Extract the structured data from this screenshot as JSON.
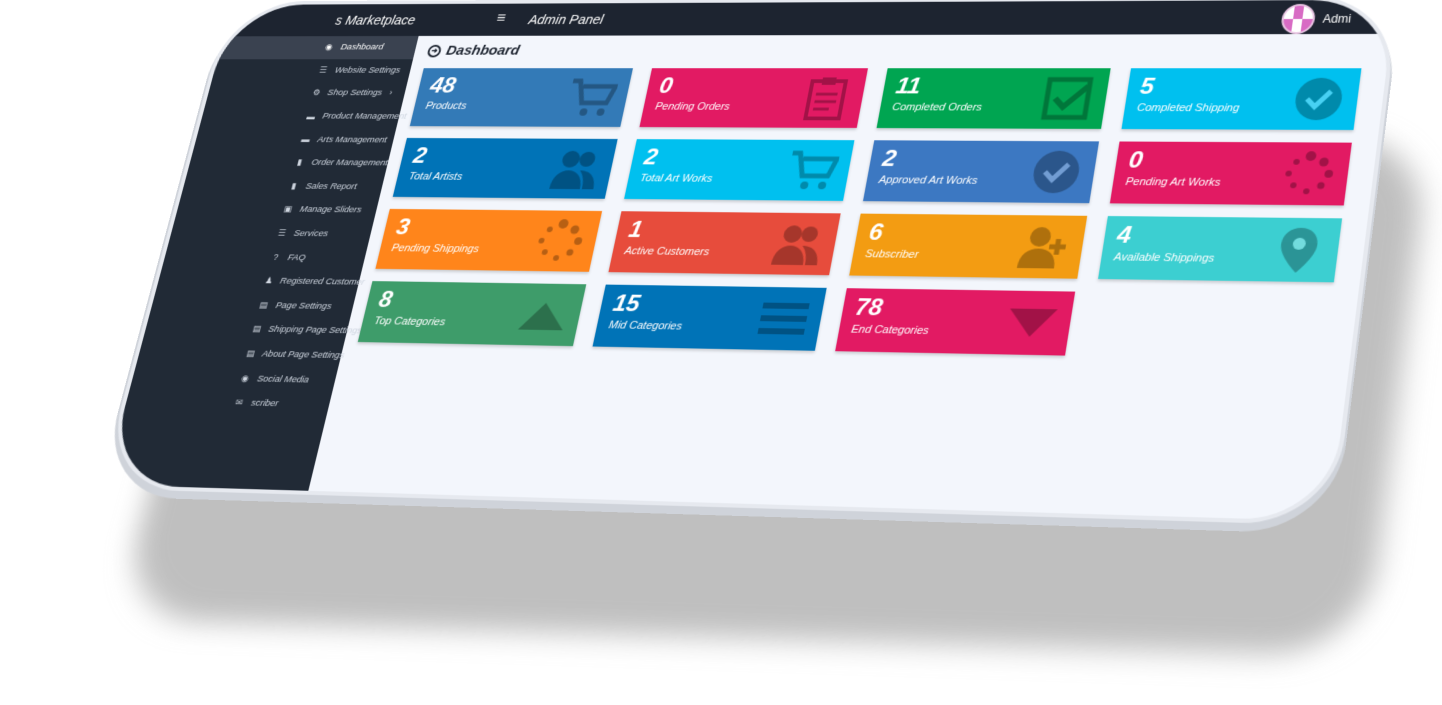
{
  "topbar": {
    "brand": "s Marketplace",
    "menu_icon": "hamburger-icon",
    "panel_title": "Admin Panel",
    "user_label": "Admi"
  },
  "sidebar": {
    "items": [
      {
        "label": "Dashboard",
        "icon": "dashboard-icon",
        "active": true
      },
      {
        "label": "Website Settings",
        "icon": "sliders-icon"
      },
      {
        "label": "Shop Settings",
        "icon": "gears-icon",
        "has_arrow": true
      },
      {
        "label": "Product Management",
        "icon": "shopping-bag-icon"
      },
      {
        "label": "Arts Management",
        "icon": "briefcase-icon"
      },
      {
        "label": "Order Management",
        "icon": "book-icon"
      },
      {
        "label": "Sales Report",
        "icon": "book-icon"
      },
      {
        "label": "Manage Sliders",
        "icon": "image-icon"
      },
      {
        "label": "Services",
        "icon": "list-icon"
      },
      {
        "label": "FAQ",
        "icon": "question-icon"
      },
      {
        "label": "Registered Customer",
        "icon": "users-icon"
      },
      {
        "label": "Page Settings",
        "icon": "list-alt-icon"
      },
      {
        "label": "Shipping Page Settings",
        "icon": "list-alt-icon"
      },
      {
        "label": "About Page Settings",
        "icon": "list-alt-icon"
      },
      {
        "label": "Social Media",
        "icon": "globe-icon"
      },
      {
        "label": "scriber",
        "icon": "envelope-icon"
      }
    ],
    "arrow": "›"
  },
  "page": {
    "title": "Dashboard"
  },
  "cards": [
    {
      "value": "48",
      "label": "Products",
      "color": "#337ab7",
      "icon": "cart-icon"
    },
    {
      "value": "0",
      "label": "Pending Orders",
      "color": "#e21a63",
      "icon": "clipboard-icon"
    },
    {
      "value": "11",
      "label": "Completed Orders",
      "color": "#00a551",
      "icon": "check-square-icon"
    },
    {
      "value": "5",
      "label": "Completed Shipping",
      "color": "#00c0ef",
      "icon": "check-circle-icon"
    },
    {
      "value": "2",
      "label": "Total Artists",
      "color": "#0073b7",
      "icon": "users-icon"
    },
    {
      "value": "2",
      "label": "Total Art Works",
      "color": "#00c0ef",
      "icon": "cart-icon"
    },
    {
      "value": "2",
      "label": "Approved Art Works",
      "color": "#3c78c2",
      "icon": "check-circle-icon"
    },
    {
      "value": "0",
      "label": "Pending Art Works",
      "color": "#e21a63",
      "icon": "spinner-icon"
    },
    {
      "value": "3",
      "label": "Pending Shippings",
      "color": "#ff851b",
      "icon": "spinner-icon"
    },
    {
      "value": "1",
      "label": "Active Customers",
      "color": "#e74c3c",
      "icon": "users-icon"
    },
    {
      "value": "6",
      "label": "Subscriber",
      "color": "#f39c12",
      "icon": "user-plus-icon"
    },
    {
      "value": "4",
      "label": "Available Shippings",
      "color": "#3ccfd1",
      "icon": "map-marker-icon"
    },
    {
      "value": "8",
      "label": "Top Categories",
      "color": "#3e9c6a",
      "icon": "caret-up-icon"
    },
    {
      "value": "15",
      "label": "Mid Categories",
      "color": "#0073b7",
      "icon": "bars-icon"
    },
    {
      "value": "78",
      "label": "End Categories",
      "color": "#e21a63",
      "icon": "caret-down-icon"
    }
  ]
}
